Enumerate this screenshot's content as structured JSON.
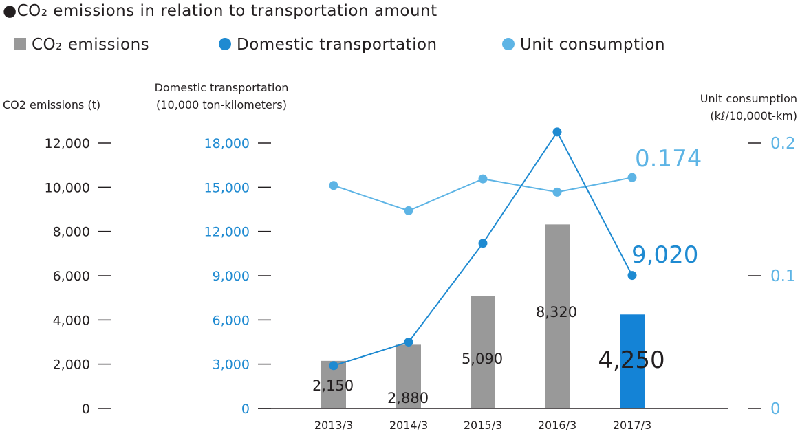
{
  "chart_data": {
    "type": "bar+line",
    "title": "●CO₂ emissions in relation to transportation amount",
    "legend": [
      {
        "marker": "■",
        "label": "CO₂ emissions",
        "color": "#999999"
      },
      {
        "marker": "●",
        "label": "Domestic transportation",
        "color": "#1e8ad1"
      },
      {
        "marker": "●",
        "label": "Unit consumption",
        "color": "#5db4e5"
      }
    ],
    "categories": [
      "2013/3",
      "2014/3",
      "2015/3",
      "2016/3",
      "2017/3"
    ],
    "axes": {
      "left": {
        "title": "CO2 emissions (t)",
        "ticks": [
          "0",
          "2,000",
          "4,000",
          "6,000",
          "8,000",
          "10,000",
          "12,000"
        ],
        "range": [
          0,
          12000
        ],
        "color": "#231f20"
      },
      "middle": {
        "title_line1": "Domestic transportation",
        "title_line2": "(10,000 ton-kilometers)",
        "ticks": [
          "0",
          "3,000",
          "6,000",
          "9,000",
          "12,000",
          "15,000",
          "18,000"
        ],
        "range": [
          0,
          18000
        ],
        "color": "#1e8ad1"
      },
      "right": {
        "title_line1": "Unit consumption",
        "title_line2": "(kℓ/10,000t-km)",
        "ticks": [
          "0",
          "0.1",
          "0.2"
        ],
        "range": [
          0,
          0.2
        ],
        "color": "#5db4e5"
      }
    },
    "series": [
      {
        "name": "CO2 emissions",
        "type": "bar",
        "axis": "left",
        "values": [
          2150,
          2880,
          5090,
          8320,
          4250
        ],
        "labels": [
          "2,150",
          "2,880",
          "5,090",
          "8,320",
          "4,250"
        ],
        "bar_color": "#999999",
        "highlight_color": "#1483d6"
      },
      {
        "name": "Domestic transportation",
        "type": "line",
        "axis": "middle",
        "values": [
          2900,
          4500,
          11200,
          18750,
          9020
        ],
        "color": "#1e8ad1"
      },
      {
        "name": "Unit consumption",
        "type": "line",
        "axis": "right",
        "values": [
          0.168,
          0.149,
          0.173,
          0.163,
          0.174
        ],
        "color": "#5db4e5"
      }
    ],
    "annotations": {
      "domestic_last": "9,020",
      "unit_last": "0.174"
    }
  }
}
